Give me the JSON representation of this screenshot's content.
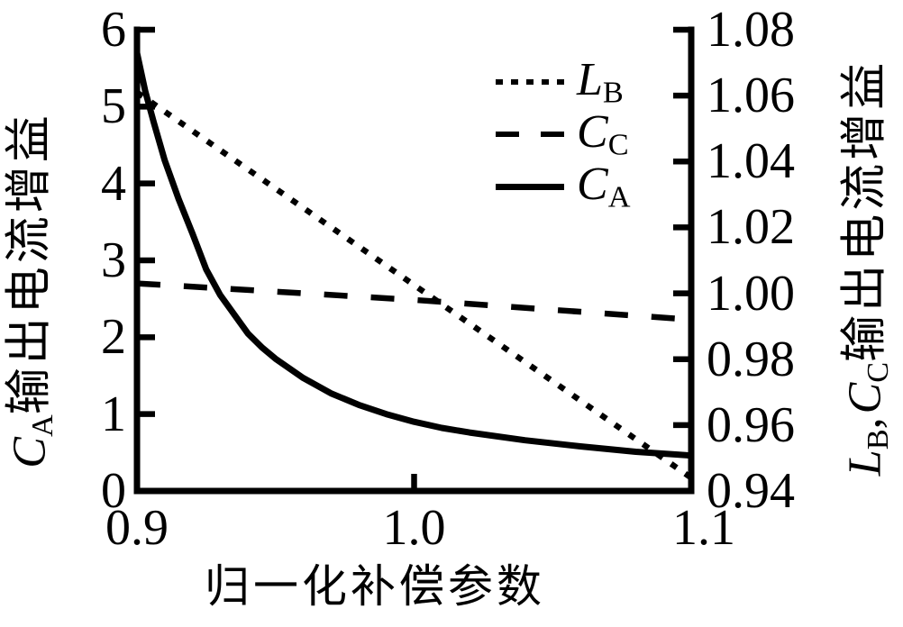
{
  "figure": {
    "background": "#ffffff",
    "foreground": "#000000"
  },
  "chart_data": {
    "type": "line",
    "title": "",
    "xlabel": "归一化补偿参数",
    "xlim": [
      0.9,
      1.1
    ],
    "x_ticks": [
      {
        "value": 0.9,
        "label": "0.9"
      },
      {
        "value": 1.0,
        "label": "1.0"
      },
      {
        "value": 1.1,
        "label": "1.1"
      }
    ],
    "left_axis": {
      "label_main": "C",
      "label_sub": "A",
      "label_rest": "输出电流增益",
      "ylim": [
        0,
        6
      ],
      "ticks": [
        {
          "value": 0,
          "label": "0"
        },
        {
          "value": 1,
          "label": "1"
        },
        {
          "value": 2,
          "label": "2"
        },
        {
          "value": 3,
          "label": "3"
        },
        {
          "value": 4,
          "label": "4"
        },
        {
          "value": 5,
          "label": "5"
        },
        {
          "value": 6,
          "label": "6"
        }
      ]
    },
    "right_axis": {
      "label_l_main": "L",
      "label_l_sub": "B",
      "label_comma": ",",
      "label_c_main": "C",
      "label_c_sub": "C",
      "label_rest": "输出电流增益",
      "ylim": [
        0.94,
        1.08
      ],
      "ticks": [
        {
          "value": 0.94,
          "label": "0.94"
        },
        {
          "value": 0.96,
          "label": "0.96"
        },
        {
          "value": 0.98,
          "label": "0.98"
        },
        {
          "value": 1.0,
          "label": "1.00"
        },
        {
          "value": 1.02,
          "label": "1.02"
        },
        {
          "value": 1.04,
          "label": "1.04"
        },
        {
          "value": 1.06,
          "label": "1.06"
        },
        {
          "value": 1.08,
          "label": "1.08"
        }
      ]
    },
    "legend_position": "upper right inside",
    "grid": false,
    "series": [
      {
        "id": "lb",
        "name": "L_B",
        "legend_main": "L",
        "legend_sub": "B",
        "axis": "right",
        "style": "dotted",
        "points": [
          [
            0.9,
            1.061
          ],
          [
            0.95,
            1.0318
          ],
          [
            1.0,
            1.0025
          ],
          [
            1.05,
            0.9733
          ],
          [
            1.1,
            0.944
          ]
        ]
      },
      {
        "id": "cc",
        "name": "C_C",
        "legend_main": "C",
        "legend_sub": "C",
        "axis": "right",
        "style": "dashed",
        "points": [
          [
            0.9,
            1.003
          ],
          [
            0.95,
            1.0005
          ],
          [
            1.0,
            0.998
          ],
          [
            1.05,
            0.995
          ],
          [
            1.1,
            0.992
          ]
        ]
      },
      {
        "id": "ca",
        "name": "C_A",
        "legend_main": "C",
        "legend_sub": "A",
        "axis": "left",
        "style": "solid",
        "points": [
          [
            0.9,
            5.7
          ],
          [
            0.903,
            5.2
          ],
          [
            0.906,
            4.8
          ],
          [
            0.91,
            4.3
          ],
          [
            0.915,
            3.8
          ],
          [
            0.92,
            3.35
          ],
          [
            0.925,
            2.88
          ],
          [
            0.93,
            2.55
          ],
          [
            0.935,
            2.3
          ],
          [
            0.94,
            2.05
          ],
          [
            0.945,
            1.87
          ],
          [
            0.95,
            1.72
          ],
          [
            0.96,
            1.47
          ],
          [
            0.97,
            1.27
          ],
          [
            0.98,
            1.12
          ],
          [
            0.99,
            1.0
          ],
          [
            1.0,
            0.9
          ],
          [
            1.01,
            0.82
          ],
          [
            1.02,
            0.76
          ],
          [
            1.04,
            0.66
          ],
          [
            1.06,
            0.58
          ],
          [
            1.08,
            0.51
          ],
          [
            1.1,
            0.46
          ]
        ]
      }
    ]
  }
}
